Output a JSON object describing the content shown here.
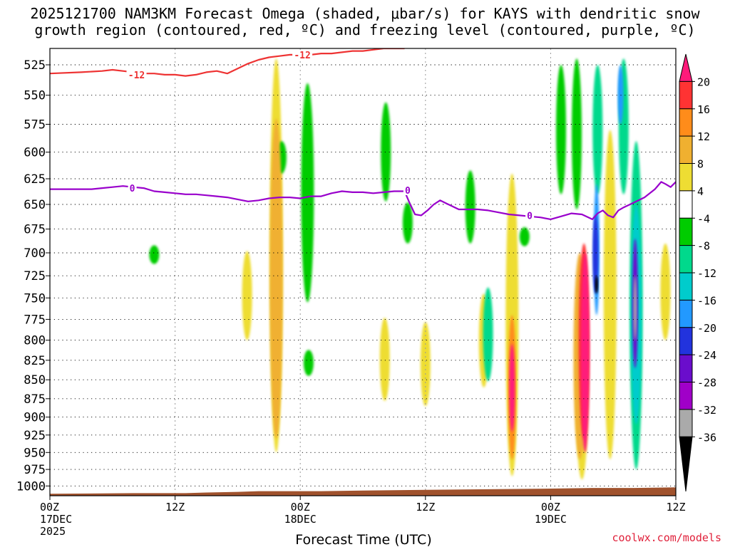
{
  "header": {
    "title_line1": "2025121700 NAM3KM Forecast Omega (shaded, μbar/s) for KAYS with dendritic snow",
    "title_line2": "growth region (contoured, red, ºC) and freezing level (contoured, purple, ºC)"
  },
  "footer": {
    "credit": "coolwx.com/models"
  },
  "chart_data": {
    "type": "heatmap",
    "title": "2025121700 NAM3KM Forecast Omega (shaded, μbar/s) for KAYS with dendritic snow growth region (contoured, red, ºC) and freezing level (contoured, purple, ºC)",
    "xlabel": "Forecast Time (UTC)",
    "ylabel": "",
    "xlim": [
      0,
      60
    ],
    "ylim": [
      1015,
      512
    ],
    "y_scale": "log-pressure",
    "grid": true,
    "x_ticks": [
      {
        "hour": 0,
        "lines": [
          "00Z",
          "17DEC",
          "2025"
        ]
      },
      {
        "hour": 12,
        "lines": [
          "12Z"
        ]
      },
      {
        "hour": 24,
        "lines": [
          "00Z",
          "18DEC"
        ]
      },
      {
        "hour": 36,
        "lines": [
          "12Z"
        ]
      },
      {
        "hour": 48,
        "lines": [
          "00Z",
          "19DEC"
        ]
      },
      {
        "hour": 60,
        "lines": [
          "12Z"
        ]
      }
    ],
    "y_ticks": [
      525,
      550,
      575,
      600,
      625,
      650,
      675,
      700,
      725,
      750,
      775,
      800,
      825,
      850,
      875,
      900,
      925,
      950,
      975,
      1000
    ],
    "colorbar": {
      "labels": [
        "20",
        "16",
        "12",
        "8",
        "4",
        "-4",
        "-8",
        "-12",
        "-16",
        "-20",
        "-24",
        "-28",
        "-32",
        "-36"
      ],
      "colors": [
        "#ff1a7a",
        "#ff3333",
        "#ff8c1a",
        "#f0b030",
        "#eedd33",
        "#ffffff",
        "#00cc00",
        "#00d98c",
        "#00cccc",
        "#2299ff",
        "#2233dd",
        "#6a0dcc",
        "#a000c8",
        "#aaaaaa",
        "#000000"
      ]
    },
    "colors": {
      "frame": "#000000",
      "grid": "#aaaaaa",
      "terrain": "#a0522d",
      "dgz_contour": "#ee3333",
      "freezing_contour": "#9900cc"
    },
    "contour_labels": [
      {
        "text": "-12",
        "hour": 8.3,
        "p": 533,
        "color": "#ee3333"
      },
      {
        "text": "-12",
        "hour": 24.2,
        "p": 517,
        "color": "#ee3333"
      },
      {
        "text": "0",
        "hour": 7.9,
        "p": 634,
        "color": "#9900cc"
      },
      {
        "text": "0",
        "hour": 34.3,
        "p": 636,
        "color": "#9900cc"
      },
      {
        "text": "0",
        "hour": 46.0,
        "p": 661,
        "color": "#9900cc"
      }
    ],
    "series": [
      {
        "name": "-12",
        "values": [
          [
            0,
            532
          ],
          [
            3,
            531
          ],
          [
            5,
            530
          ],
          [
            6,
            529
          ],
          [
            7,
            530
          ],
          [
            8,
            531
          ],
          [
            9,
            532
          ],
          [
            10,
            532
          ],
          [
            11,
            533
          ],
          [
            12,
            533
          ],
          [
            13,
            534
          ],
          [
            14,
            533
          ],
          [
            15,
            531
          ],
          [
            16,
            530
          ],
          [
            17,
            532
          ],
          [
            18,
            528
          ],
          [
            19,
            524
          ],
          [
            20,
            521
          ],
          [
            21,
            519
          ],
          [
            22,
            518
          ],
          [
            23,
            517
          ],
          [
            24,
            517
          ],
          [
            25,
            517
          ],
          [
            26,
            516
          ],
          [
            27,
            516
          ],
          [
            28,
            515
          ],
          [
            29,
            514
          ],
          [
            30,
            514
          ],
          [
            31,
            513
          ],
          [
            32,
            512
          ],
          [
            33,
            512
          ],
          [
            34,
            512
          ]
        ]
      },
      {
        "name": "0",
        "values": [
          [
            0,
            635
          ],
          [
            2,
            635
          ],
          [
            4,
            635
          ],
          [
            5,
            634
          ],
          [
            6,
            633
          ],
          [
            7,
            632
          ],
          [
            8,
            633
          ],
          [
            9,
            634
          ],
          [
            10,
            637
          ],
          [
            11,
            638
          ],
          [
            12,
            639
          ],
          [
            13,
            640
          ],
          [
            14,
            640
          ],
          [
            15,
            641
          ],
          [
            16,
            642
          ],
          [
            17,
            643
          ],
          [
            18,
            645
          ],
          [
            19,
            647
          ],
          [
            20,
            646
          ],
          [
            21,
            644
          ],
          [
            22,
            643
          ],
          [
            23,
            643
          ],
          [
            24,
            644
          ],
          [
            25,
            642
          ],
          [
            26,
            642
          ],
          [
            27,
            639
          ],
          [
            28,
            637
          ],
          [
            29,
            638
          ],
          [
            30,
            638
          ],
          [
            31,
            639
          ],
          [
            32,
            638
          ],
          [
            33,
            637
          ],
          [
            34,
            637
          ],
          [
            34.5,
            649
          ],
          [
            35,
            660
          ],
          [
            35.6,
            661
          ],
          [
            36.2,
            656
          ],
          [
            36.8,
            650
          ],
          [
            37.4,
            646
          ],
          [
            38,
            649
          ],
          [
            38.6,
            652
          ],
          [
            39.2,
            655
          ],
          [
            40,
            655
          ],
          [
            41,
            655
          ],
          [
            42,
            656
          ],
          [
            43,
            658
          ],
          [
            44,
            660
          ],
          [
            45,
            661
          ],
          [
            46,
            662
          ],
          [
            47,
            663
          ],
          [
            48,
            665
          ],
          [
            49,
            662
          ],
          [
            50,
            659
          ],
          [
            51,
            660
          ],
          [
            52,
            665
          ],
          [
            52.5,
            659
          ],
          [
            53,
            656
          ],
          [
            53.5,
            661
          ],
          [
            54,
            663
          ],
          [
            54.5,
            656
          ],
          [
            55,
            653
          ],
          [
            56,
            648
          ],
          [
            57,
            643
          ],
          [
            58,
            635
          ],
          [
            58.6,
            628
          ],
          [
            59,
            630
          ],
          [
            59.5,
            633
          ],
          [
            60,
            628
          ]
        ]
      }
    ],
    "terrain_top_p": [
      [
        0,
        1012
      ],
      [
        8,
        1011
      ],
      [
        13,
        1011
      ],
      [
        15,
        1010
      ],
      [
        18,
        1009
      ],
      [
        20,
        1008
      ],
      [
        24,
        1008
      ],
      [
        26,
        1008
      ],
      [
        30,
        1007
      ],
      [
        36,
        1006
      ],
      [
        42,
        1005
      ],
      [
        48,
        1004
      ],
      [
        52,
        1003
      ],
      [
        56,
        1003
      ],
      [
        60,
        1002
      ]
    ],
    "shaded_regions": [
      {
        "value": 4,
        "hour": 21.7,
        "p": [
          520,
          950
        ]
      },
      {
        "value": 8,
        "hour": 21.7,
        "p": [
          570,
          930
        ]
      },
      {
        "value": 4,
        "hour": 18.9,
        "p": [
          698,
          800
        ]
      },
      {
        "value": -4,
        "hour": 10.0,
        "p": [
          692,
          712
        ]
      },
      {
        "value": -4,
        "hour": 22.2,
        "p": [
          590,
          620
        ]
      },
      {
        "value": -4,
        "hour": 24.7,
        "p": [
          540,
          755
        ]
      },
      {
        "value": -4,
        "hour": 24.8,
        "p": [
          812,
          845
        ]
      },
      {
        "value": -4,
        "hour": 32.2,
        "p": [
          556,
          647
        ]
      },
      {
        "value": 4,
        "hour": 32.1,
        "p": [
          773,
          878
        ]
      },
      {
        "value": 4,
        "hour": 36.0,
        "p": [
          778,
          885
        ]
      },
      {
        "value": -4,
        "hour": 34.3,
        "p": [
          648,
          690
        ]
      },
      {
        "value": -4,
        "hour": 40.3,
        "p": [
          617,
          690
        ]
      },
      {
        "value": 4,
        "hour": 41.6,
        "p": [
          745,
          860
        ]
      },
      {
        "value": -8,
        "hour": 42.0,
        "p": [
          738,
          852
        ]
      },
      {
        "value": 4,
        "hour": 44.3,
        "p": [
          620,
          985
        ]
      },
      {
        "value": 12,
        "hour": 44.3,
        "p": [
          770,
          960
        ]
      },
      {
        "value": 20,
        "hour": 44.3,
        "p": [
          805,
          920
        ]
      },
      {
        "value": -4,
        "hour": 45.5,
        "p": [
          673,
          693
        ]
      },
      {
        "value": -4,
        "hour": 49.0,
        "p": [
          525,
          640
        ]
      },
      {
        "value": -4,
        "hour": 50.5,
        "p": [
          520,
          655
        ]
      },
      {
        "value": 4,
        "hour": 51.0,
        "p": [
          735,
          990
        ]
      },
      {
        "value": 8,
        "hour": 50.8,
        "p": [
          700,
          960
        ]
      },
      {
        "value": 16,
        "hour": 51.2,
        "p": [
          690,
          930
        ]
      },
      {
        "value": 20,
        "hour": 51.3,
        "p": [
          700,
          950
        ]
      },
      {
        "value": -8,
        "hour": 52.5,
        "p": [
          525,
          640
        ]
      },
      {
        "value": -20,
        "hour": 52.4,
        "p": [
          630,
          770
        ]
      },
      {
        "value": -24,
        "hour": 52.3,
        "p": [
          660,
          745
        ]
      },
      {
        "value": -36,
        "hour": 52.4,
        "p": [
          725,
          745
        ]
      },
      {
        "value": 4,
        "hour": 53.7,
        "p": [
          580,
          960
        ]
      },
      {
        "value": -8,
        "hour": 55.0,
        "p": [
          520,
          640
        ]
      },
      {
        "value": -20,
        "hour": 54.7,
        "p": [
          525,
          575
        ]
      },
      {
        "value": -8,
        "hour": 56.2,
        "p": [
          590,
          975
        ]
      },
      {
        "value": -16,
        "hour": 56.2,
        "p": [
          650,
          910
        ]
      },
      {
        "value": -28,
        "hour": 56.1,
        "p": [
          685,
          835
        ]
      },
      {
        "value": -32,
        "hour": 56.1,
        "p": [
          725,
          800
        ]
      },
      {
        "value": 4,
        "hour": 59.0,
        "p": [
          690,
          800
        ]
      }
    ]
  }
}
